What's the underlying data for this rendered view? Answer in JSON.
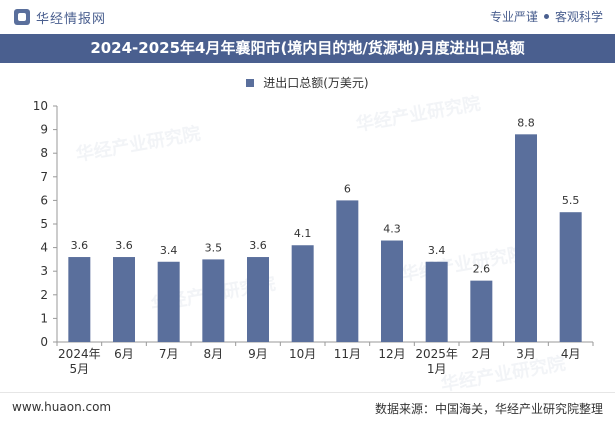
{
  "header": {
    "brand": "华经情报网",
    "slogan_left": "专业严谨",
    "slogan_right": "客观科学"
  },
  "colors": {
    "bar": "#5a6f9c",
    "title_bg": "#4a5f8f",
    "axis": "#999999",
    "text": "#333333"
  },
  "chart_data": {
    "type": "bar",
    "title": "2024-2025年4月年襄阳市(境内目的地/货源地)月度进出口总额",
    "legend_position": "top-center",
    "grid": false,
    "categories": [
      [
        "2024年",
        "5月"
      ],
      [
        "6月"
      ],
      [
        "7月"
      ],
      [
        "8月"
      ],
      [
        "9月"
      ],
      [
        "10月"
      ],
      [
        "11月"
      ],
      [
        "12月"
      ],
      [
        "2025年",
        "1月"
      ],
      [
        "2月"
      ],
      [
        "3月"
      ],
      [
        "4月"
      ]
    ],
    "series": [
      {
        "name": "进出口总额(万美元)",
        "values": [
          3.6,
          3.6,
          3.4,
          3.5,
          3.6,
          4.1,
          6,
          4.3,
          3.4,
          2.6,
          8.8,
          5.5
        ],
        "labels": [
          "3.6",
          "3.6",
          "3.4",
          "3.5",
          "3.6",
          "4.1",
          "6",
          "4.3",
          "3.4",
          "2.6",
          "8.8",
          "5.5"
        ]
      }
    ],
    "ylim": [
      0,
      10
    ],
    "yticks": [
      0,
      1,
      2,
      3,
      4,
      5,
      6,
      7,
      8,
      9,
      10
    ],
    "xlabel": "",
    "ylabel": ""
  },
  "footer": {
    "website": "www.huaon.com",
    "source": "数据来源：中国海关，华经产业研究院整理"
  },
  "watermark": "华经产业研究院"
}
